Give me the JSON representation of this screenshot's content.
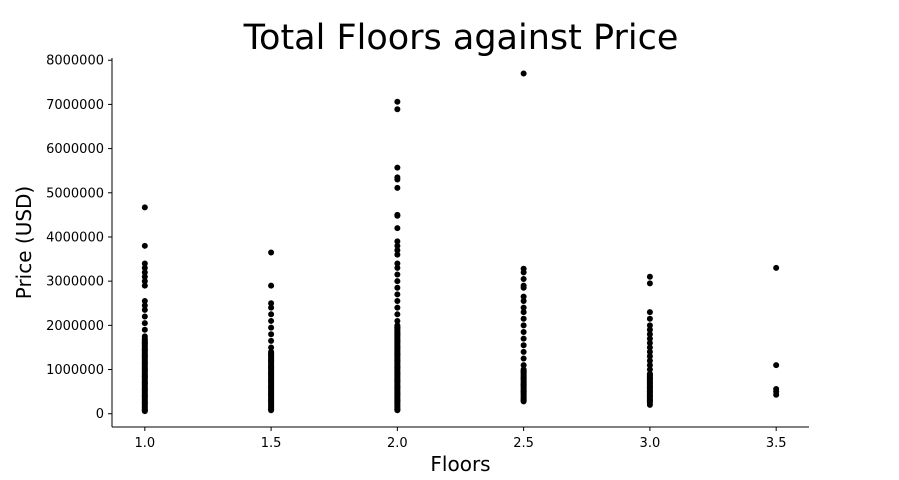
{
  "chart_data": {
    "type": "scatter",
    "title": "Total Floors against Price",
    "xlabel": "Floors",
    "ylabel": "Price (USD)",
    "xlim": [
      0.87,
      3.63
    ],
    "ylim": [
      -300000,
      8050000
    ],
    "xticks": [
      1.0,
      1.5,
      2.0,
      2.5,
      3.0,
      3.5
    ],
    "xtick_labels": [
      "1.0",
      "1.5",
      "2.0",
      "2.5",
      "3.0",
      "3.5"
    ],
    "yticks": [
      0,
      1000000,
      2000000,
      3000000,
      4000000,
      5000000,
      6000000,
      7000000,
      8000000
    ],
    "ytick_labels": [
      "0",
      "1000000",
      "2000000",
      "3000000",
      "4000000",
      "5000000",
      "6000000",
      "7000000",
      "8000000"
    ],
    "grid": false,
    "marker_color": "#000000",
    "points": [
      {
        "x": 1.0,
        "y": 4670000
      },
      {
        "x": 1.0,
        "y": 3800000
      },
      {
        "x": 1.0,
        "y": 3400000
      },
      {
        "x": 1.0,
        "y": 3300000
      },
      {
        "x": 1.0,
        "y": 3200000
      },
      {
        "x": 1.0,
        "y": 3100000
      },
      {
        "x": 1.0,
        "y": 3000000
      },
      {
        "x": 1.0,
        "y": 2900000
      },
      {
        "x": 1.0,
        "y": 2550000
      },
      {
        "x": 1.0,
        "y": 2450000
      },
      {
        "x": 1.0,
        "y": 2350000
      },
      {
        "x": 1.0,
        "y": 2200000
      },
      {
        "x": 1.0,
        "y": 2050000
      },
      {
        "x": 1.0,
        "y": 1900000
      },
      {
        "x": 1.0,
        "y": 1750000
      },
      {
        "x": 1.0,
        "y": 1600000
      },
      {
        "x": 1.0,
        "y": 1450000
      },
      {
        "x": 1.0,
        "y": 1300000
      },
      {
        "x": 1.0,
        "y": 1150000
      },
      {
        "x": 1.0,
        "y": 1000000
      },
      {
        "x": 1.0,
        "y": 850000
      },
      {
        "x": 1.0,
        "y": 700000
      },
      {
        "x": 1.0,
        "y": 550000
      },
      {
        "x": 1.0,
        "y": 400000
      },
      {
        "x": 1.0,
        "y": 250000
      },
      {
        "x": 1.0,
        "y": 80000
      },
      {
        "x": 1.5,
        "y": 3650000
      },
      {
        "x": 1.5,
        "y": 2900000
      },
      {
        "x": 1.5,
        "y": 2500000
      },
      {
        "x": 1.5,
        "y": 2400000
      },
      {
        "x": 1.5,
        "y": 2250000
      },
      {
        "x": 1.5,
        "y": 2100000
      },
      {
        "x": 1.5,
        "y": 1950000
      },
      {
        "x": 1.5,
        "y": 1800000
      },
      {
        "x": 1.5,
        "y": 1650000
      },
      {
        "x": 1.5,
        "y": 1500000
      },
      {
        "x": 1.5,
        "y": 1350000
      },
      {
        "x": 1.5,
        "y": 1200000
      },
      {
        "x": 1.5,
        "y": 1050000
      },
      {
        "x": 1.5,
        "y": 900000
      },
      {
        "x": 1.5,
        "y": 750000
      },
      {
        "x": 1.5,
        "y": 600000
      },
      {
        "x": 1.5,
        "y": 450000
      },
      {
        "x": 1.5,
        "y": 300000
      },
      {
        "x": 1.5,
        "y": 100000
      },
      {
        "x": 2.0,
        "y": 7060000
      },
      {
        "x": 2.0,
        "y": 6890000
      },
      {
        "x": 2.0,
        "y": 5570000
      },
      {
        "x": 2.0,
        "y": 5350000
      },
      {
        "x": 2.0,
        "y": 5300000
      },
      {
        "x": 2.0,
        "y": 5110000
      },
      {
        "x": 2.0,
        "y": 4500000
      },
      {
        "x": 2.0,
        "y": 4480000
      },
      {
        "x": 2.0,
        "y": 4200000
      },
      {
        "x": 2.0,
        "y": 3900000
      },
      {
        "x": 2.0,
        "y": 3800000
      },
      {
        "x": 2.0,
        "y": 3700000
      },
      {
        "x": 2.0,
        "y": 3600000
      },
      {
        "x": 2.0,
        "y": 3400000
      },
      {
        "x": 2.0,
        "y": 3300000
      },
      {
        "x": 2.0,
        "y": 3150000
      },
      {
        "x": 2.0,
        "y": 3000000
      },
      {
        "x": 2.0,
        "y": 2850000
      },
      {
        "x": 2.0,
        "y": 2700000
      },
      {
        "x": 2.0,
        "y": 2550000
      },
      {
        "x": 2.0,
        "y": 2400000
      },
      {
        "x": 2.0,
        "y": 2250000
      },
      {
        "x": 2.0,
        "y": 2100000
      },
      {
        "x": 2.0,
        "y": 1950000
      },
      {
        "x": 2.0,
        "y": 1800000
      },
      {
        "x": 2.0,
        "y": 1650000
      },
      {
        "x": 2.0,
        "y": 1500000
      },
      {
        "x": 2.0,
        "y": 1350000
      },
      {
        "x": 2.0,
        "y": 1200000
      },
      {
        "x": 2.0,
        "y": 1050000
      },
      {
        "x": 2.0,
        "y": 900000
      },
      {
        "x": 2.0,
        "y": 750000
      },
      {
        "x": 2.0,
        "y": 600000
      },
      {
        "x": 2.0,
        "y": 450000
      },
      {
        "x": 2.0,
        "y": 300000
      },
      {
        "x": 2.0,
        "y": 90000
      },
      {
        "x": 2.5,
        "y": 7700000
      },
      {
        "x": 2.5,
        "y": 3280000
      },
      {
        "x": 2.5,
        "y": 3200000
      },
      {
        "x": 2.5,
        "y": 3050000
      },
      {
        "x": 2.5,
        "y": 2900000
      },
      {
        "x": 2.5,
        "y": 2850000
      },
      {
        "x": 2.5,
        "y": 2650000
      },
      {
        "x": 2.5,
        "y": 2550000
      },
      {
        "x": 2.5,
        "y": 2400000
      },
      {
        "x": 2.5,
        "y": 2300000
      },
      {
        "x": 2.5,
        "y": 2150000
      },
      {
        "x": 2.5,
        "y": 2000000
      },
      {
        "x": 2.5,
        "y": 1850000
      },
      {
        "x": 2.5,
        "y": 1700000
      },
      {
        "x": 2.5,
        "y": 1550000
      },
      {
        "x": 2.5,
        "y": 1400000
      },
      {
        "x": 2.5,
        "y": 1250000
      },
      {
        "x": 2.5,
        "y": 1100000
      },
      {
        "x": 2.5,
        "y": 950000
      },
      {
        "x": 2.5,
        "y": 800000
      },
      {
        "x": 2.5,
        "y": 650000
      },
      {
        "x": 2.5,
        "y": 500000
      },
      {
        "x": 2.5,
        "y": 300000
      },
      {
        "x": 3.0,
        "y": 3100000
      },
      {
        "x": 3.0,
        "y": 2950000
      },
      {
        "x": 3.0,
        "y": 2300000
      },
      {
        "x": 3.0,
        "y": 2150000
      },
      {
        "x": 3.0,
        "y": 2000000
      },
      {
        "x": 3.0,
        "y": 1900000
      },
      {
        "x": 3.0,
        "y": 1800000
      },
      {
        "x": 3.0,
        "y": 1700000
      },
      {
        "x": 3.0,
        "y": 1600000
      },
      {
        "x": 3.0,
        "y": 1500000
      },
      {
        "x": 3.0,
        "y": 1400000
      },
      {
        "x": 3.0,
        "y": 1300000
      },
      {
        "x": 3.0,
        "y": 1200000
      },
      {
        "x": 3.0,
        "y": 1100000
      },
      {
        "x": 3.0,
        "y": 1000000
      },
      {
        "x": 3.0,
        "y": 900000
      },
      {
        "x": 3.0,
        "y": 800000
      },
      {
        "x": 3.0,
        "y": 700000
      },
      {
        "x": 3.0,
        "y": 600000
      },
      {
        "x": 3.0,
        "y": 500000
      },
      {
        "x": 3.0,
        "y": 400000
      },
      {
        "x": 3.0,
        "y": 300000
      },
      {
        "x": 3.0,
        "y": 200000
      },
      {
        "x": 3.5,
        "y": 3300000
      },
      {
        "x": 3.5,
        "y": 1100000
      },
      {
        "x": 3.5,
        "y": 560000
      },
      {
        "x": 3.5,
        "y": 500000
      },
      {
        "x": 3.5,
        "y": 430000
      }
    ],
    "dense_ranges": [
      {
        "x": 1.0,
        "y_min": 60000,
        "y_max": 1700000
      },
      {
        "x": 1.5,
        "y_min": 80000,
        "y_max": 1400000
      },
      {
        "x": 2.0,
        "y_min": 80000,
        "y_max": 2000000
      },
      {
        "x": 2.5,
        "y_min": 280000,
        "y_max": 1000000
      },
      {
        "x": 3.0,
        "y_min": 250000,
        "y_max": 900000
      }
    ]
  }
}
